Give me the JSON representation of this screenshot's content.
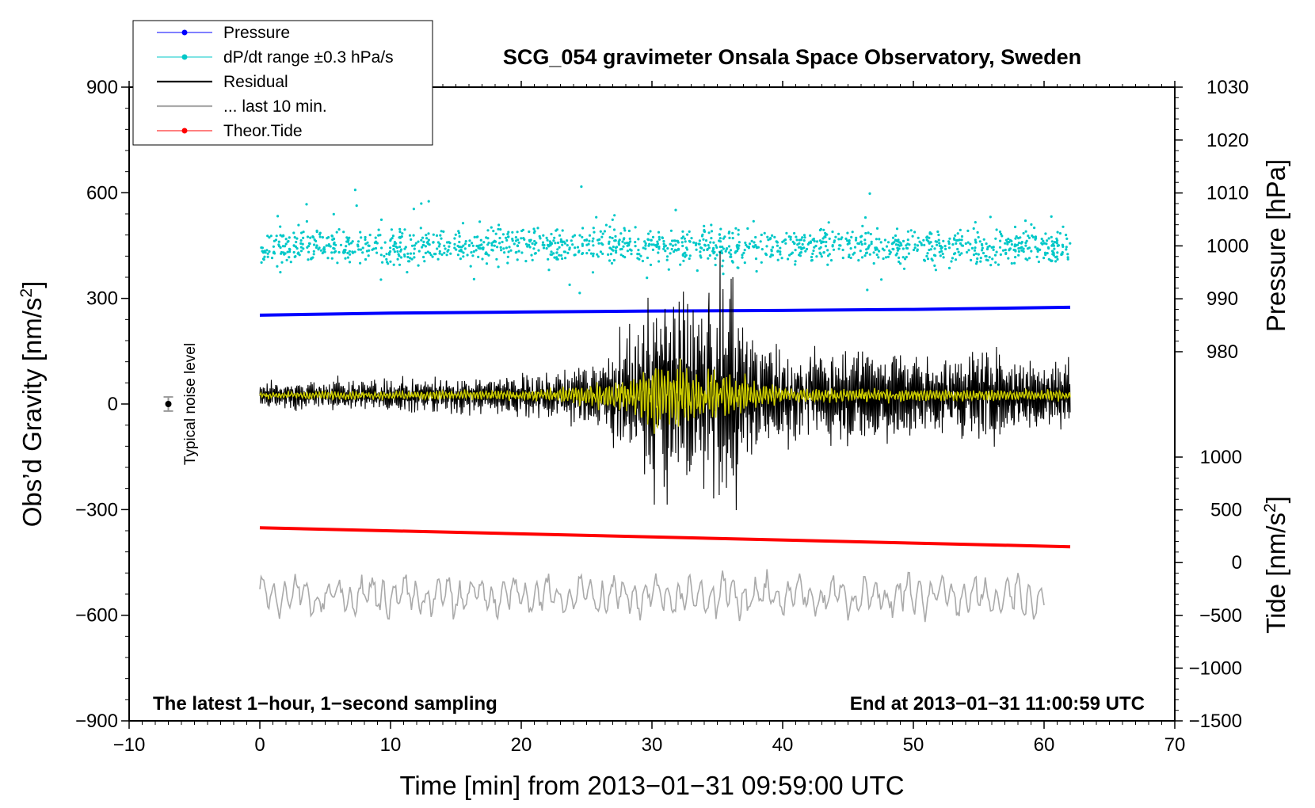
{
  "chart_data": {
    "type": "line",
    "title": "SCG_054 gravimeter Onsala Space Observatory, Sweden",
    "xlabel": "Time [min] from 2013−01−31 09:59:00 UTC",
    "ylabel_left": "Obs’d Gravity [nm/s²]",
    "ylabel_left_text": "Obs’d Gravity [nm/s",
    "ylabel_left_sup": "2",
    "ylabel_left_close": "]",
    "ylabel_pressure": "Pressure [hPa]",
    "ylabel_tide": "Tide [nm/s²]",
    "ylabel_tide_text": "Tide [nm/s",
    "ylabel_tide_sup": "2",
    "ylabel_tide_close": "]",
    "xlim": [
      -10,
      70
    ],
    "ylim_left": [
      -900,
      900
    ],
    "ylim_pressure": [
      970,
      1030
    ],
    "ylim_tide": [
      -1500,
      1500
    ],
    "x_ticks": [
      -10,
      0,
      10,
      20,
      30,
      40,
      50,
      60,
      70
    ],
    "x_tick_labels": [
      "−10",
      "0",
      "10",
      "20",
      "30",
      "40",
      "50",
      "60",
      "70"
    ],
    "y_left_ticks": [
      900,
      600,
      300,
      0,
      -300,
      -600,
      -900
    ],
    "y_left_tick_labels": [
      "900",
      "600",
      "300",
      "0",
      "−300",
      "−600",
      "−900"
    ],
    "y_pressure_ticks": [
      1030,
      1020,
      1010,
      1000,
      990,
      980
    ],
    "y_pressure_tick_labels": [
      "1030",
      "1020",
      "1010",
      "1000",
      "990",
      "980"
    ],
    "y_tide_ticks": [
      1000,
      500,
      0,
      -500,
      -1000,
      -1500
    ],
    "y_tide_tick_labels": [
      "1000",
      "500",
      "0",
      "−500",
      "−1000",
      "−1500"
    ],
    "annotation_left": "The latest 1−hour, 1−second sampling",
    "annotation_right": "End at 2013−01−31 11:00:59 UTC",
    "noise_label": "Typical noise level",
    "noise_marker": {
      "x": -7,
      "y": 0,
      "err": 20
    },
    "legend": {
      "placement": "top-left",
      "entries": [
        {
          "label": "Pressure",
          "color": "#0000ff",
          "style": "line-dot"
        },
        {
          "label": "dP/dt range ±0.3 hPa/s",
          "color": "#00c8c8",
          "style": "line-dot"
        },
        {
          "label": "Residual",
          "color": "#000000",
          "style": "line"
        },
        {
          "label": "... last 10 min.",
          "color": "#aaaaaa",
          "style": "line"
        },
        {
          "label": "Theor.Tide",
          "color": "#ff0000",
          "style": "line-dot"
        }
      ]
    },
    "series": [
      {
        "name": "Pressure",
        "axis": "pressure",
        "color": "#0000ff",
        "x": [
          0,
          10,
          20,
          30,
          40,
          50,
          62
        ],
        "y": [
          986.9,
          987.3,
          987.5,
          987.7,
          987.8,
          988.0,
          988.4
        ]
      },
      {
        "name": "dP/dt range ±0.3 hPa/s",
        "axis": "pressure",
        "color": "#00c8c8",
        "style": "scatter",
        "x_range": [
          0,
          62
        ],
        "center": 1000,
        "spread": 4.5
      },
      {
        "name": "Residual",
        "axis": "left",
        "color": "#000000",
        "x_range": [
          0,
          62
        ],
        "center": 25,
        "envelope_x": [
          0,
          10,
          20,
          25,
          29,
          30,
          31,
          32,
          33,
          34,
          35,
          36,
          37,
          38,
          40,
          45,
          50,
          55,
          62
        ],
        "envelope_amp": [
          40,
          50,
          60,
          90,
          200,
          320,
          290,
          300,
          270,
          280,
          280,
          390,
          200,
          160,
          140,
          140,
          130,
          120,
          110
        ]
      },
      {
        "name": "residual-filtered",
        "axis": "left",
        "color": "#cccc00",
        "x_range": [
          0,
          62
        ],
        "center": 25,
        "envelope_x": [
          0,
          20,
          25,
          29,
          30,
          31,
          33,
          35,
          36,
          38,
          42,
          62
        ],
        "envelope_amp": [
          10,
          15,
          30,
          60,
          120,
          100,
          90,
          80,
          70,
          40,
          20,
          15
        ]
      },
      {
        "name": "... last 10 min.",
        "axis": "left",
        "color": "#aaaaaa",
        "x_range": [
          0,
          60
        ],
        "center": -545,
        "amplitude": 50
      },
      {
        "name": "Theor.Tide",
        "axis": "tide",
        "color": "#ff0000",
        "x": [
          0,
          62
        ],
        "y": [
          330,
          150
        ]
      }
    ]
  }
}
